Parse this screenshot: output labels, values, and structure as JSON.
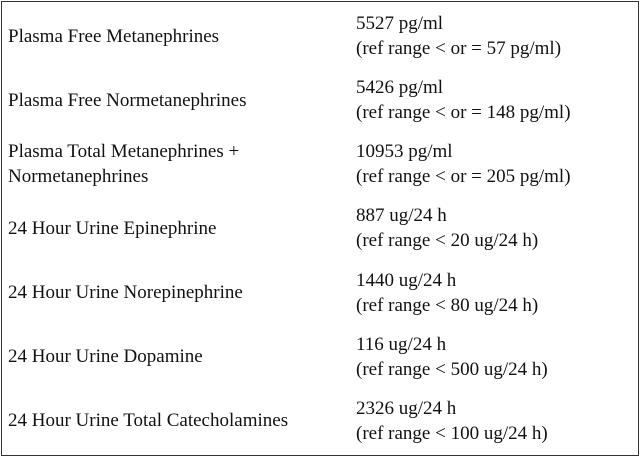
{
  "table": {
    "rows": [
      [
        "Plasma Free Metanephrines",
        "5527 pg/ml",
        "(ref range < or = 57 pg/ml)"
      ],
      [
        "Plasma Free Normetanephrines",
        "5426 pg/ml",
        "(ref range < or = 148 pg/ml)"
      ],
      [
        "Plasma Total Metanephrines + Normetanephrines",
        "10953 pg/ml",
        "(ref range < or = 205 pg/ml)"
      ],
      [
        "24 Hour Urine Epinephrine",
        "887 ug/24 h",
        "(ref range < 20 ug/24 h)"
      ],
      [
        "24 Hour Urine Norepinephrine",
        "1440 ug/24 h",
        "(ref range < 80 ug/24 h)"
      ],
      [
        "24 Hour Urine Dopamine",
        "116 ug/24 h",
        "(ref range < 500 ug/24 h)"
      ],
      [
        "24 Hour Urine Total Catecholamines",
        "2326 ug/24 h",
        "(ref range < 100 ug/24 h)"
      ]
    ]
  }
}
